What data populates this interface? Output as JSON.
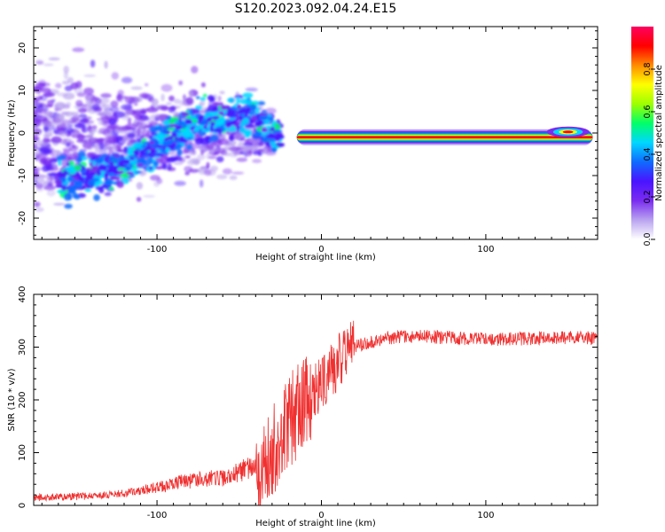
{
  "figure": {
    "title": "S120.2023.092.04.24.E15"
  },
  "colorbar": {
    "label": "Normalized spectral amplitude",
    "ticks": [
      "0.0",
      "0.2",
      "0.4",
      "0.6",
      "0.8"
    ],
    "tick_values": [
      0.0,
      0.2,
      0.4,
      0.6,
      0.8
    ],
    "range": [
      0,
      1
    ],
    "colors": [
      "#ffffff",
      "#b9a3f0",
      "#7a2cf0",
      "#4a14ff",
      "#0f6bff",
      "#00d7ff",
      "#00ff6a",
      "#9dff00",
      "#ffff00",
      "#ff8c00",
      "#ff0000",
      "#ff0060"
    ]
  },
  "chart_data": [
    {
      "type": "heatmap",
      "title": "",
      "xlabel": "Height of straight line (km)",
      "ylabel": "Frequency (Hz)",
      "xlim": [
        -175,
        168
      ],
      "ylim": [
        -25,
        25
      ],
      "xticks": [
        -100,
        0,
        100
      ],
      "xtick_labels": [
        "-100",
        "0",
        "100"
      ],
      "yticks": [
        -20,
        -10,
        0,
        10,
        20
      ],
      "ytick_labels": [
        "-20",
        "-10",
        "0",
        "10",
        "20"
      ],
      "features": [
        {
          "name": "diffuse scatter",
          "x": [
            -175,
            -30
          ],
          "freq_range": [
            -25,
            25
          ],
          "level": 0.15
        },
        {
          "name": "ridge",
          "x": [
            -160,
            -120,
            -80,
            -45,
            -25
          ],
          "y": [
            -12,
            -8,
            2,
            5,
            -2
          ],
          "level": 0.35
        },
        {
          "name": "line",
          "x": [
            -15,
            165
          ],
          "y": [
            -1,
            -1
          ],
          "level": 0.95
        }
      ]
    },
    {
      "type": "line",
      "title": "",
      "xlabel": "Height of straight line (km)",
      "ylabel": "SNR (10 * v/v)",
      "xlim": [
        -175,
        168
      ],
      "ylim": [
        0,
        400
      ],
      "xticks": [
        -100,
        0,
        100
      ],
      "xtick_labels": [
        "-100",
        "0",
        "100"
      ],
      "yticks": [
        0,
        100,
        200,
        300,
        400
      ],
      "ytick_labels": [
        "0",
        "100",
        "200",
        "300",
        "400"
      ],
      "color": "#f03030",
      "series": [
        {
          "x": [
            -175,
            -160,
            -140,
            -120,
            -100,
            -90,
            -85,
            -80,
            -70,
            -60,
            -50,
            -40,
            -30,
            -25,
            -20,
            -15,
            -10,
            -5,
            0,
            5,
            10,
            20,
            30,
            40,
            50,
            60,
            80,
            100,
            120,
            140,
            160,
            168
          ],
          "values": [
            12,
            13,
            15,
            20,
            30,
            35,
            42,
            40,
            45,
            45,
            55,
            70,
            95,
            140,
            160,
            175,
            190,
            210,
            230,
            250,
            270,
            300,
            310,
            318,
            320,
            320,
            318,
            315,
            316,
            318,
            318,
            318
          ]
        }
      ]
    }
  ]
}
